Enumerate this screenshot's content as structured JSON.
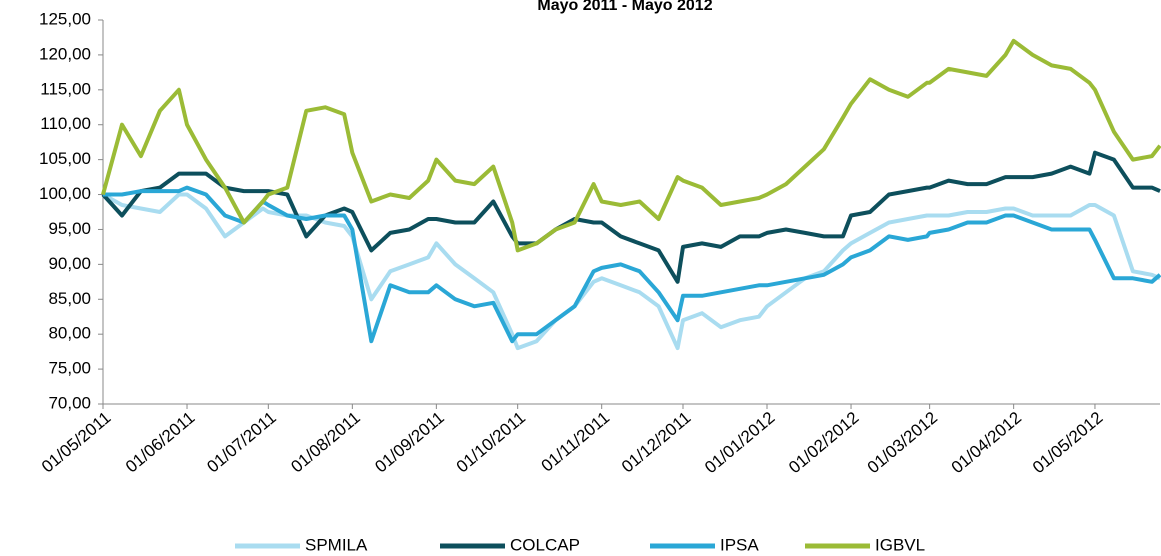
{
  "chart_data": {
    "type": "line",
    "title": "Mayo 2011 - Mayo 2012",
    "x": [
      "01/05/2011",
      "08/05/2011",
      "15/05/2011",
      "22/05/2011",
      "29/05/2011",
      "01/06/2011",
      "08/06/2011",
      "15/06/2011",
      "22/06/2011",
      "29/06/2011",
      "01/07/2011",
      "08/07/2011",
      "15/07/2011",
      "22/07/2011",
      "29/07/2011",
      "01/08/2011",
      "08/08/2011",
      "15/08/2011",
      "22/08/2011",
      "29/08/2011",
      "01/09/2011",
      "08/09/2011",
      "15/09/2011",
      "22/09/2011",
      "29/09/2011",
      "01/10/2011",
      "08/10/2011",
      "15/10/2011",
      "22/10/2011",
      "29/10/2011",
      "01/11/2011",
      "08/11/2011",
      "15/11/2011",
      "22/11/2011",
      "29/11/2011",
      "01/12/2011",
      "08/12/2011",
      "15/12/2011",
      "22/12/2011",
      "29/12/2011",
      "01/01/2012",
      "08/01/2012",
      "15/01/2012",
      "22/01/2012",
      "29/01/2012",
      "01/02/2012",
      "08/02/2012",
      "15/02/2012",
      "22/02/2012",
      "29/02/2012",
      "01/03/2012",
      "08/03/2012",
      "15/03/2012",
      "22/03/2012",
      "29/03/2012",
      "01/04/2012",
      "08/04/2012",
      "15/04/2012",
      "22/04/2012",
      "29/04/2012",
      "01/05/2012",
      "08/05/2012",
      "15/05/2012",
      "22/05/2012",
      "25/05/2012"
    ],
    "series": [
      {
        "name": "SPMILA",
        "color": "#a9dcf0",
        "values": [
          100,
          98.5,
          98,
          97.5,
          100,
          100,
          98,
          94,
          96,
          98,
          97.5,
          97,
          97,
          96,
          95.5,
          94,
          85,
          89,
          90,
          91,
          93,
          90,
          88,
          86,
          80,
          78,
          79,
          82,
          84,
          87.5,
          88,
          87,
          86,
          84,
          78,
          82,
          83,
          81,
          82,
          82.5,
          84,
          86,
          88,
          89,
          92,
          93,
          94.5,
          96,
          96.5,
          97,
          97,
          97,
          97.5,
          97.5,
          98,
          98,
          97,
          97,
          97,
          98.5,
          98.5,
          97,
          89,
          88.5,
          88
        ]
      },
      {
        "name": "COLCAP",
        "color": "#0d4f5c",
        "values": [
          100,
          97,
          100.5,
          101,
          103,
          103,
          103,
          101,
          100.5,
          100.5,
          100.5,
          100,
          94,
          97,
          98,
          97.5,
          92,
          94.5,
          95,
          96.5,
          96.5,
          96,
          96,
          99,
          94,
          93,
          93,
          95,
          96.5,
          96,
          96,
          94,
          93,
          92,
          87.5,
          92.5,
          93,
          92.5,
          94,
          94,
          94.5,
          95,
          94.5,
          94,
          94,
          97,
          97.5,
          100,
          100.5,
          101,
          101,
          102,
          101.5,
          101.5,
          102.5,
          102.5,
          102.5,
          103,
          104,
          103,
          106,
          105,
          101,
          101,
          100.5
        ]
      },
      {
        "name": "IPSA",
        "color": "#2aa7d6",
        "values": [
          100,
          100,
          100.5,
          100.5,
          100.5,
          101,
          100,
          97,
          96,
          99,
          98.5,
          97,
          96.5,
          97,
          97,
          95,
          79,
          87,
          86,
          86,
          87,
          85,
          84,
          84.5,
          79,
          80,
          80,
          82,
          84,
          89,
          89.5,
          90,
          89,
          86,
          82,
          85.5,
          85.5,
          86,
          86.5,
          87,
          87,
          87.5,
          88,
          88.5,
          90,
          91,
          92,
          94,
          93.5,
          94,
          94.5,
          95,
          96,
          96,
          97,
          97,
          96,
          95,
          95,
          95,
          93.5,
          88,
          88,
          87.5,
          88.5
        ]
      },
      {
        "name": "IGBVL",
        "color": "#9bbb36",
        "values": [
          100,
          110,
          105.5,
          112,
          115,
          110,
          105,
          101,
          96,
          99,
          100,
          101,
          112,
          112.5,
          111.5,
          106,
          99,
          100,
          99.5,
          102,
          105,
          102,
          101.5,
          104,
          96,
          92,
          93,
          95,
          96,
          101.5,
          99,
          98.5,
          99,
          96.5,
          102.5,
          102,
          101,
          98.5,
          99,
          99.5,
          100,
          101.5,
          104,
          106.5,
          111,
          113,
          116.5,
          115,
          114,
          116,
          116,
          118,
          117.5,
          117,
          120,
          122,
          120,
          118.5,
          118,
          116,
          115,
          109,
          105,
          105.5,
          107
        ]
      }
    ],
    "xlim": [
      "01/05/2011",
      "25/05/2012"
    ],
    "xticks": [
      "01/05/2011",
      "01/06/2011",
      "01/07/2011",
      "01/08/2011",
      "01/09/2011",
      "01/10/2011",
      "01/11/2011",
      "01/12/2011",
      "01/01/2012",
      "01/02/2012",
      "01/03/2012",
      "01/04/2012",
      "01/05/2012"
    ],
    "ylim": [
      70,
      125
    ],
    "yticks": [
      {
        "value": 70,
        "label": "70,00"
      },
      {
        "value": 75,
        "label": "75,00"
      },
      {
        "value": 80,
        "label": "80,00"
      },
      {
        "value": 85,
        "label": "85,00"
      },
      {
        "value": 90,
        "label": "90,00"
      },
      {
        "value": 95,
        "label": "95,00"
      },
      {
        "value": 100,
        "label": "100,00"
      },
      {
        "value": 105,
        "label": "105,00"
      },
      {
        "value": 110,
        "label": "110,00"
      },
      {
        "value": 115,
        "label": "115,00"
      },
      {
        "value": 120,
        "label": "120,00"
      },
      {
        "value": 125,
        "label": "125,00"
      }
    ],
    "grid": false,
    "legend": "bottom"
  }
}
